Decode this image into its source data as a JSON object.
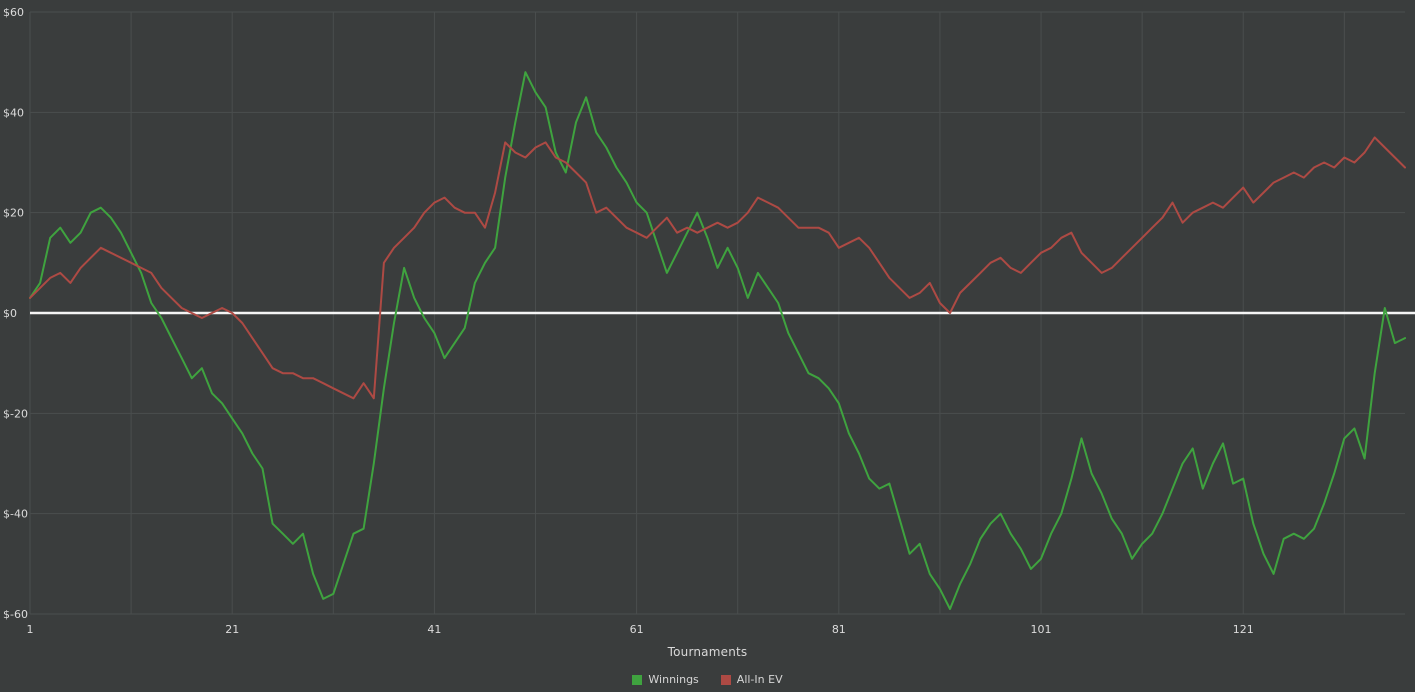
{
  "colors": {
    "background": "#3a3d3d",
    "grid": "#4a4e4e",
    "text": "#dcdcdc",
    "zero_line": "#f5f5f5",
    "winnings_green": "#3fa33f",
    "ev_red": "#ad4a44"
  },
  "chart_data": {
    "type": "line",
    "title": "",
    "xlabel": "Tournaments",
    "ylabel": "",
    "xlim": [
      1,
      137
    ],
    "ylim": [
      -60,
      60
    ],
    "x_grid_step": 10,
    "grid": true,
    "legend_position": "bottom",
    "zero_line": {
      "value": 0,
      "color": "#f5f5f5"
    },
    "x_ticks": [
      {
        "value": 1,
        "label": "1"
      },
      {
        "value": 21,
        "label": "21"
      },
      {
        "value": 41,
        "label": "41"
      },
      {
        "value": 61,
        "label": "61"
      },
      {
        "value": 81,
        "label": "81"
      },
      {
        "value": 101,
        "label": "101"
      },
      {
        "value": 121,
        "label": "121"
      }
    ],
    "y_ticks": [
      {
        "value": 60,
        "label": "$60"
      },
      {
        "value": 40,
        "label": "$40"
      },
      {
        "value": 20,
        "label": "$20"
      },
      {
        "value": 0,
        "label": "$0"
      },
      {
        "value": -20,
        "label": "$-20"
      },
      {
        "value": -40,
        "label": "$-40"
      },
      {
        "value": -60,
        "label": "$-60"
      }
    ],
    "series": [
      {
        "name": "Winnings",
        "color": "#3fa33f",
        "values": [
          3,
          6,
          15,
          17,
          14,
          16,
          20,
          21,
          19,
          16,
          12,
          8,
          2,
          -1,
          -5,
          -9,
          -13,
          -11,
          -16,
          -18,
          -21,
          -24,
          -28,
          -31,
          -42,
          -44,
          -46,
          -44,
          -52,
          -57,
          -56,
          -50,
          -44,
          -43,
          -30,
          -15,
          -2,
          9,
          3,
          -1,
          -4,
          -9,
          -6,
          -3,
          6,
          10,
          13,
          27,
          38,
          48,
          44,
          41,
          32,
          28,
          38,
          43,
          36,
          33,
          29,
          26,
          22,
          20,
          14,
          8,
          12,
          16,
          20,
          15,
          9,
          13,
          9,
          3,
          8,
          5,
          2,
          -4,
          -8,
          -12,
          -13,
          -15,
          -18,
          -24,
          -28,
          -33,
          -35,
          -34,
          -41,
          -48,
          -46,
          -52,
          -55,
          -59,
          -54,
          -50,
          -45,
          -42,
          -40,
          -44,
          -47,
          -51,
          -49,
          -44,
          -40,
          -33,
          -25,
          -32,
          -36,
          -41,
          -44,
          -49,
          -46,
          -44,
          -40,
          -35,
          -30,
          -27,
          -35,
          -30,
          -26,
          -34,
          -33,
          -42,
          -48,
          -52,
          -45,
          -44,
          -45,
          -43,
          -38,
          -32,
          -25,
          -23,
          -29,
          -12,
          1,
          -6,
          -5
        ]
      },
      {
        "name": "All-In EV",
        "color": "#ad4a44",
        "values": [
          3,
          5,
          7,
          8,
          6,
          9,
          11,
          13,
          12,
          11,
          10,
          9,
          8,
          5,
          3,
          1,
          0,
          -1,
          0,
          1,
          0,
          -2,
          -5,
          -8,
          -11,
          -12,
          -12,
          -13,
          -13,
          -14,
          -15,
          -16,
          -17,
          -14,
          -17,
          10,
          13,
          15,
          17,
          20,
          22,
          23,
          21,
          20,
          20,
          17,
          24,
          34,
          32,
          31,
          33,
          34,
          31,
          30,
          28,
          26,
          20,
          21,
          19,
          17,
          16,
          15,
          17,
          19,
          16,
          17,
          16,
          17,
          18,
          17,
          18,
          20,
          23,
          22,
          21,
          19,
          17,
          17,
          17,
          16,
          13,
          14,
          15,
          13,
          10,
          7,
          5,
          3,
          4,
          6,
          2,
          0,
          4,
          6,
          8,
          10,
          11,
          9,
          8,
          10,
          12,
          13,
          15,
          16,
          12,
          10,
          8,
          9,
          11,
          13,
          15,
          17,
          19,
          22,
          18,
          20,
          21,
          22,
          21,
          23,
          25,
          22,
          24,
          26,
          27,
          28,
          27,
          29,
          30,
          29,
          31,
          30,
          32,
          35,
          33,
          31,
          29
        ]
      }
    ]
  }
}
